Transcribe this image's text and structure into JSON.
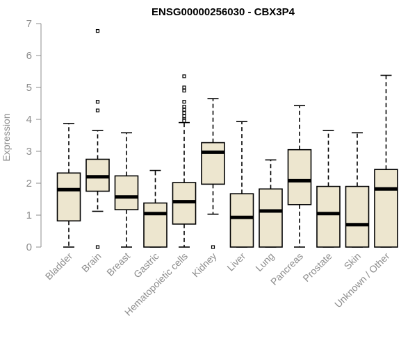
{
  "chart_data": {
    "type": "boxplot",
    "title": "ENSG00000256030 - CBX3P4",
    "xlabel": "",
    "ylabel": "Expression",
    "ylim": [
      0,
      7
    ],
    "yticks": [
      "0",
      "1",
      "2",
      "3",
      "4",
      "5",
      "6",
      "7"
    ],
    "grid": false,
    "legend": "none",
    "box_fill": "#ede6cf",
    "box_stroke": "#000000",
    "categories": [
      "Bladder",
      "Brain",
      "Breast",
      "Gastric",
      "Hematopoietic cells",
      "Kidney",
      "Liver",
      "Lung",
      "Pancreas",
      "Prostate",
      "Skin",
      "Unknown / Other"
    ],
    "series": [
      {
        "whisker_low": 0,
        "q1": 0.82,
        "median": 1.8,
        "q3": 2.32,
        "whisker_high": 3.87,
        "outliers": []
      },
      {
        "whisker_low": 1.12,
        "q1": 1.75,
        "median": 2.2,
        "q3": 2.75,
        "whisker_high": 3.65,
        "outliers": [
          6.77,
          4.55,
          4.28,
          0
        ]
      },
      {
        "whisker_low": 0,
        "q1": 1.17,
        "median": 1.57,
        "q3": 2.23,
        "whisker_high": 3.58,
        "outliers": []
      },
      {
        "whisker_low": 0,
        "q1": 0,
        "median": 1.05,
        "q3": 1.38,
        "whisker_high": 2.4,
        "outliers": []
      },
      {
        "whisker_low": 0,
        "q1": 0.72,
        "median": 1.42,
        "q3": 2.02,
        "whisker_high": 3.9,
        "outliers": [
          5.35,
          5.0,
          4.9,
          4.55,
          4.4,
          4.3,
          4.2,
          4.1,
          4.0,
          3.95
        ]
      },
      {
        "whisker_low": 1.03,
        "q1": 1.97,
        "median": 2.97,
        "q3": 3.27,
        "whisker_high": 4.65,
        "outliers": [
          0
        ]
      },
      {
        "whisker_low": 0,
        "q1": 0,
        "median": 0.93,
        "q3": 1.67,
        "whisker_high": 3.93,
        "outliers": []
      },
      {
        "whisker_low": 0,
        "q1": 0,
        "median": 1.13,
        "q3": 1.82,
        "whisker_high": 2.73,
        "outliers": []
      },
      {
        "whisker_low": 0,
        "q1": 1.33,
        "median": 2.08,
        "q3": 3.05,
        "whisker_high": 4.43,
        "outliers": []
      },
      {
        "whisker_low": 0,
        "q1": 0,
        "median": 1.05,
        "q3": 1.9,
        "whisker_high": 3.65,
        "outliers": []
      },
      {
        "whisker_low": 0,
        "q1": 0,
        "median": 0.7,
        "q3": 1.9,
        "whisker_high": 3.58,
        "outliers": []
      },
      {
        "whisker_low": 0,
        "q1": 0,
        "median": 1.82,
        "q3": 2.43,
        "whisker_high": 5.38,
        "outliers": []
      }
    ]
  }
}
